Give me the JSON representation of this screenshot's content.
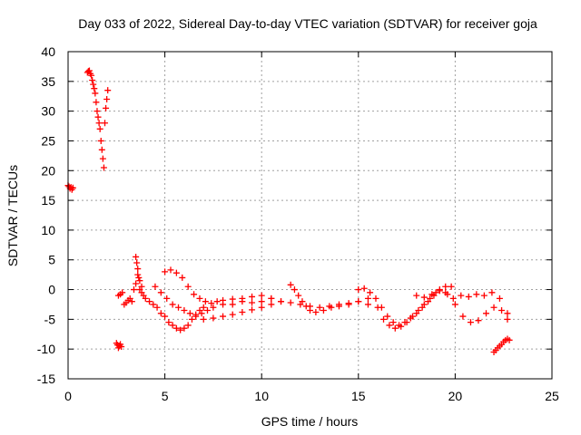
{
  "chart_data": {
    "type": "scatter",
    "title": "Day 033 of 2022, Sidereal Day-to-day VTEC variation (SDTVAR) for receiver goja",
    "xlabel": "GPS time / hours",
    "ylabel": "SDTVAR / TECUs",
    "xlim": [
      0,
      25
    ],
    "ylim": [
      -15,
      40
    ],
    "xticks": [
      0,
      5,
      10,
      15,
      20,
      25
    ],
    "yticks": [
      -15,
      -10,
      -5,
      0,
      5,
      10,
      15,
      20,
      25,
      30,
      35,
      40
    ],
    "grid": true,
    "marker": "+",
    "color": "#ff0000",
    "series": [
      {
        "name": "SDTVAR",
        "x": [
          0.0,
          0.05,
          0.1,
          0.15,
          0.2,
          0.25,
          1.0,
          1.05,
          1.1,
          1.15,
          1.2,
          1.25,
          1.3,
          1.35,
          1.4,
          1.45,
          1.5,
          1.55,
          1.6,
          1.65,
          1.7,
          1.75,
          1.8,
          1.85,
          1.9,
          1.95,
          2.0,
          2.05,
          2.5,
          2.55,
          2.6,
          2.65,
          2.7,
          2.75,
          2.6,
          2.7,
          2.8,
          2.9,
          3.0,
          3.1,
          3.2,
          3.3,
          3.4,
          3.5,
          3.6,
          3.7,
          3.8,
          3.5,
          3.55,
          3.6,
          3.65,
          3.7,
          3.8,
          3.9,
          4.0,
          4.2,
          4.4,
          4.6,
          4.8,
          5.0,
          5.2,
          5.4,
          5.6,
          5.8,
          6.0,
          6.2,
          6.4,
          6.6,
          6.8,
          7.0,
          5.0,
          5.3,
          5.6,
          5.9,
          6.2,
          6.5,
          6.8,
          7.1,
          7.4,
          7.7,
          8.0,
          8.5,
          9.0,
          9.5,
          10.0,
          10.5,
          11.0,
          4.5,
          4.8,
          5.1,
          5.4,
          5.7,
          6.0,
          6.3,
          6.6,
          6.9,
          7.2,
          7.5,
          8.0,
          8.5,
          9.0,
          9.5,
          10.0,
          10.5,
          7.0,
          7.5,
          8.0,
          8.5,
          9.0,
          9.5,
          10.0,
          10.5,
          11.0,
          11.5,
          12.0,
          12.5,
          13.0,
          13.5,
          14.0,
          14.5,
          15.0,
          15.5,
          16.0,
          11.5,
          11.7,
          11.9,
          12.1,
          12.3,
          12.5,
          12.8,
          13.2,
          13.6,
          14.0,
          14.5,
          15.0,
          15.5,
          15.0,
          15.3,
          15.6,
          15.9,
          16.2,
          16.5,
          16.8,
          17.1,
          17.4,
          17.7,
          18.0,
          18.3,
          18.6,
          18.9,
          19.2,
          19.5,
          19.8,
          16.3,
          16.6,
          16.9,
          17.2,
          17.5,
          17.8,
          18.1,
          18.4,
          18.7,
          19.0,
          18.0,
          18.4,
          18.8,
          19.2,
          19.6,
          20.0,
          20.4,
          20.8,
          21.2,
          21.6,
          22.0,
          22.4,
          22.7,
          19.5,
          19.9,
          20.3,
          20.7,
          21.1,
          21.5,
          21.9,
          22.3,
          22.7,
          22.0,
          22.1,
          22.2,
          22.3,
          22.4,
          22.5,
          22.6,
          22.7,
          22.8
        ],
        "y": [
          17.5,
          17.3,
          17.0,
          17.2,
          16.8,
          17.1,
          36.5,
          36.7,
          36.8,
          36.3,
          36.0,
          35.2,
          34.5,
          33.8,
          33.0,
          31.5,
          30.0,
          29.0,
          28.0,
          27.0,
          25.0,
          23.5,
          22.0,
          20.5,
          28.0,
          30.5,
          32.0,
          33.5,
          -9.0,
          -9.3,
          -9.8,
          -9.5,
          -9.2,
          -9.6,
          -1.0,
          -0.8,
          -0.5,
          -2.5,
          -2.2,
          -1.8,
          -1.5,
          -2.0,
          0.0,
          1.0,
          2.5,
          1.5,
          0.5,
          5.5,
          4.5,
          3.5,
          2.0,
          0.0,
          -0.5,
          -1.0,
          -1.5,
          -2.0,
          -2.5,
          -3.0,
          -4.0,
          -4.5,
          -5.5,
          -6.0,
          -6.5,
          -6.8,
          -6.5,
          -6.0,
          -5.0,
          -4.2,
          -3.5,
          -3.0,
          3.0,
          3.3,
          2.8,
          2.0,
          0.5,
          -0.8,
          -1.5,
          -2.0,
          -2.3,
          -2.0,
          -1.8,
          -1.6,
          -1.5,
          -1.2,
          -1.0,
          -1.5,
          -2.0,
          0.5,
          -0.5,
          -1.5,
          -2.5,
          -3.0,
          -3.5,
          -4.0,
          -4.5,
          -4.0,
          -3.5,
          -3.0,
          -2.5,
          -2.5,
          -2.0,
          -2.2,
          -2.0,
          -1.5,
          -5.0,
          -4.8,
          -4.5,
          -4.2,
          -3.8,
          -3.4,
          -3.0,
          -2.5,
          -2.0,
          -2.2,
          -2.5,
          -2.8,
          -3.0,
          -2.8,
          -2.5,
          -2.3,
          -2.0,
          -2.5,
          -3.0,
          0.8,
          0.0,
          -1.0,
          -2.0,
          -2.8,
          -3.5,
          -3.8,
          -3.5,
          -3.0,
          -2.8,
          -2.5,
          -2.0,
          -1.5,
          0.0,
          0.2,
          -0.5,
          -1.5,
          -3.0,
          -4.5,
          -5.5,
          -6.0,
          -5.5,
          -4.8,
          -4.0,
          -3.0,
          -2.0,
          -1.0,
          0.0,
          0.5,
          0.5,
          -5.0,
          -6.0,
          -6.5,
          -6.2,
          -5.5,
          -4.5,
          -3.5,
          -2.5,
          -1.5,
          -0.5,
          -1.0,
          -1.3,
          -0.8,
          -0.2,
          -0.8,
          -2.5,
          -4.5,
          -5.5,
          -5.2,
          -4.0,
          -3.0,
          -3.5,
          -5.0,
          -0.5,
          -1.5,
          -1.0,
          -1.2,
          -0.8,
          -1.0,
          -0.5,
          -1.5,
          -4.0,
          -10.5,
          -10.2,
          -9.8,
          -9.5,
          -9.2,
          -8.8,
          -8.5,
          -8.3,
          -8.5
        ]
      }
    ]
  }
}
